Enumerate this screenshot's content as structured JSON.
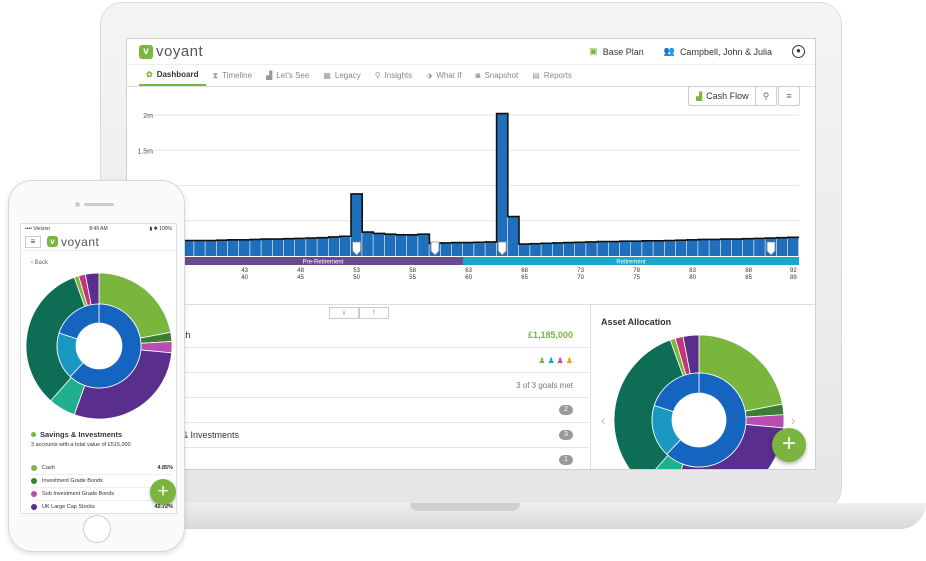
{
  "app": {
    "brand": "voyant"
  },
  "header": {
    "plan_label": "Base Plan",
    "client_label": "Campbell, John & Julia"
  },
  "tabs": [
    {
      "label": "Dashboard",
      "active": true
    },
    {
      "label": "Timeline"
    },
    {
      "label": "Let's See"
    },
    {
      "label": "Legacy"
    },
    {
      "label": "Insights"
    },
    {
      "label": "What If"
    },
    {
      "label": "Snapshot"
    },
    {
      "label": "Reports"
    }
  ],
  "chart_toolbar": {
    "cash_flow_label": "Cash Flow"
  },
  "chart_data": {
    "type": "bar",
    "y_ticks": [
      "2m",
      "1.5m"
    ],
    "ylim": [
      0,
      2000000
    ],
    "x_tick_labels_top": [
      "43",
      "48",
      "53",
      "58",
      "63",
      "68",
      "73",
      "78",
      "83",
      "88",
      "92"
    ],
    "x_tick_labels_bottom": [
      "40",
      "45",
      "50",
      "55",
      "60",
      "65",
      "70",
      "75",
      "80",
      "85",
      "89"
    ],
    "phases": [
      {
        "label": "Pre-Retirement",
        "from": 38,
        "to": 63,
        "color": "#6b4a8c"
      },
      {
        "label": "Retirement",
        "from": 63,
        "to": 93,
        "color": "#1aa6c9"
      }
    ],
    "x": [
      38,
      39,
      40,
      41,
      42,
      43,
      44,
      45,
      46,
      47,
      48,
      49,
      50,
      51,
      52,
      53,
      54,
      55,
      56,
      57,
      58,
      59,
      60,
      61,
      62,
      63,
      64,
      65,
      66,
      67,
      68,
      69,
      70,
      71,
      72,
      73,
      74,
      75,
      76,
      77,
      78,
      79,
      80,
      81,
      82,
      83,
      84,
      85,
      86,
      87,
      88,
      89,
      90,
      91,
      92
    ],
    "values": [
      220000,
      220000,
      220000,
      225000,
      230000,
      230000,
      235000,
      240000,
      240000,
      245000,
      250000,
      255000,
      260000,
      270000,
      280000,
      880000,
      340000,
      320000,
      310000,
      300000,
      300000,
      310000,
      180000,
      185000,
      190000,
      190000,
      195000,
      200000,
      2020000,
      560000,
      170000,
      175000,
      180000,
      185000,
      190000,
      195000,
      200000,
      205000,
      205000,
      210000,
      210000,
      215000,
      215000,
      220000,
      225000,
      230000,
      235000,
      235000,
      240000,
      240000,
      245000,
      250000,
      255000,
      260000,
      265000
    ],
    "bar_color": "#1f6fbd"
  },
  "summary": {
    "net_worth_label": "orth",
    "net_worth_value": "£1,185,000",
    "row2_label": "e",
    "goals_value": "3 of 3 goals met",
    "row4_label": "e",
    "row4_count": "2",
    "row5_label": "s & Investments",
    "row5_count": "3",
    "row6_label": "ty",
    "row6_count": "1"
  },
  "asset_allocation": {
    "title": "Asset Allocation",
    "outer": [
      {
        "value": 22,
        "color": "#7ab53e"
      },
      {
        "value": 2,
        "color": "#3b7d33"
      },
      {
        "value": 2.5,
        "color": "#b74fb0"
      },
      {
        "value": 29,
        "color": "#5a2e8c"
      },
      {
        "value": 6,
        "color": "#1fb08d"
      },
      {
        "value": 33,
        "color": "#0e6e55"
      },
      {
        "value": 1,
        "color": "#7ab53e"
      },
      {
        "value": 1.5,
        "color": "#c2367a"
      },
      {
        "value": 3,
        "color": "#5a2e8c"
      }
    ],
    "inner": [
      {
        "value": 62,
        "color": "#1464c0"
      },
      {
        "value": 18,
        "color": "#1a98c2"
      },
      {
        "value": 20,
        "color": "#1464c0"
      }
    ]
  },
  "phone": {
    "status_carrier": "•••• Verizon",
    "status_time": "8:49 AM",
    "status_right": "▮ ✱ 100%",
    "back_label": "Back",
    "section_title": "Savings & Investments",
    "section_sub": "3 accounts with a total value of £515,000",
    "items": [
      {
        "label": "Cash",
        "pct": "4.85%",
        "color": "#7ab53e"
      },
      {
        "label": "Investment Grade Bonds",
        "pct": "",
        "color": "#3b7d33"
      },
      {
        "label": "Sub Investment Grade Bonds",
        "pct": "",
        "color": "#b74fb0"
      },
      {
        "label": "UK Large Cap Stocks",
        "pct": "42.72%",
        "color": "#5a2e8c"
      }
    ]
  }
}
